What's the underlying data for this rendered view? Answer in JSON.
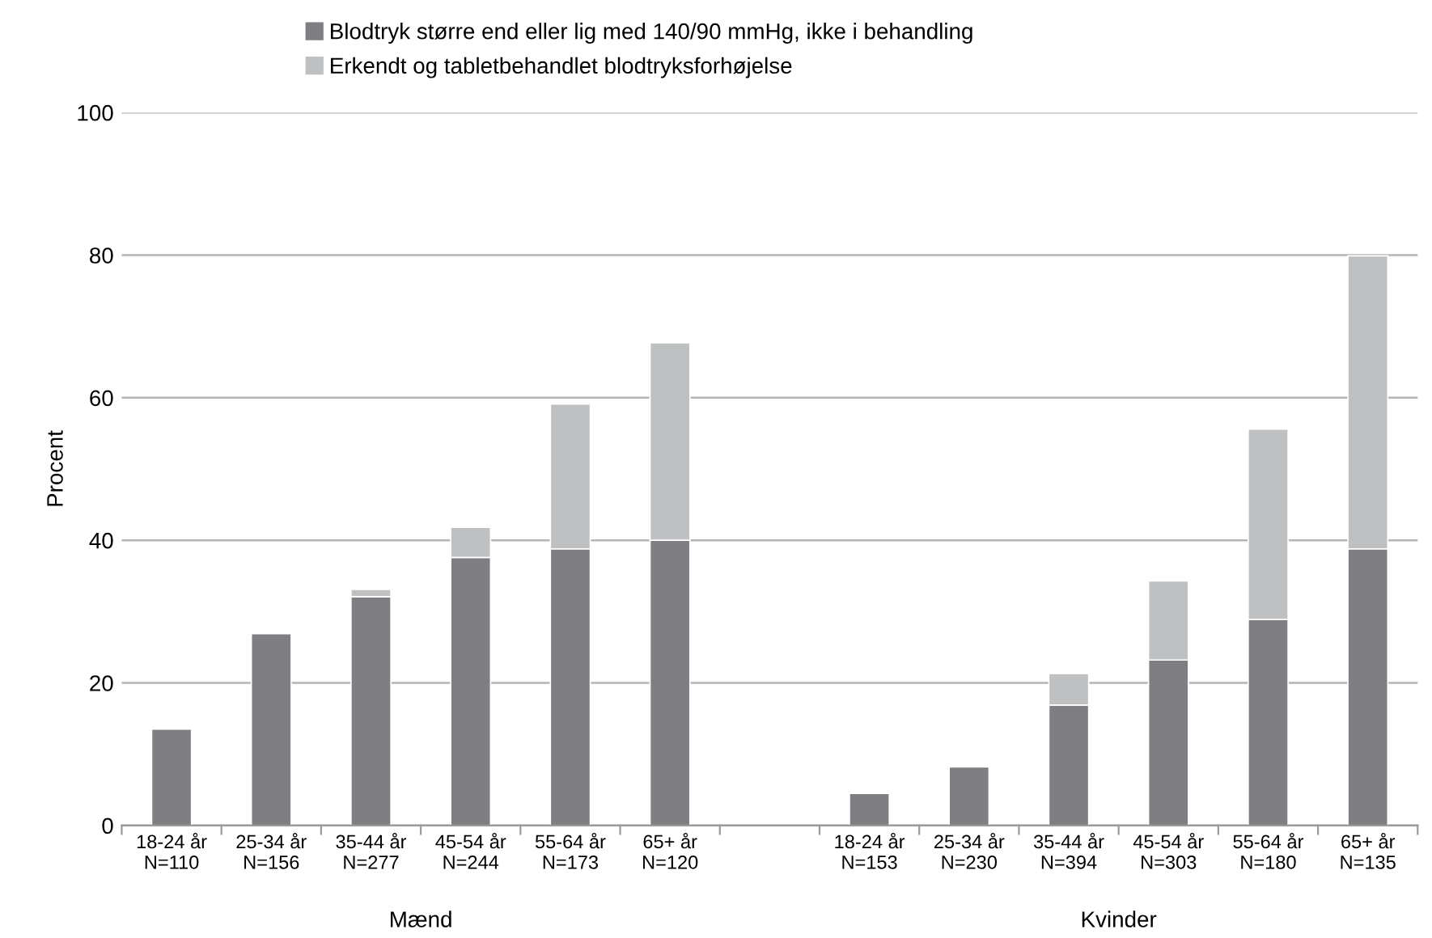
{
  "chart_data": {
    "type": "bar",
    "stacked": true,
    "ylabel": "Procent",
    "categories": [
      "18-24 år\nN=110",
      "25-34 år\nN=156",
      "35-44 år\nN=277",
      "45-54 år\nN=244",
      "55-64 år\nN=173",
      "65+ år\nN=120",
      null,
      "18-24 år\nN=153",
      "25-34 år\nN=230",
      "35-44 år\nN=394",
      "45-54 år\nN=303",
      "55-64 år\nN=180",
      "65+ år\nN=135"
    ],
    "series": [
      {
        "name": "Blodtryk større end eller lig med 140/90 mmHg, ikke i behandling",
        "color": "#7f7f83",
        "values": [
          13.5,
          26.9,
          32.1,
          37.6,
          38.8,
          40.0,
          null,
          4.5,
          8.2,
          16.9,
          23.2,
          28.9,
          38.8
        ]
      },
      {
        "name": "Erkendt og tabletbehandlet blodtryksforhøjelse",
        "color": "#bfc0c2",
        "values": [
          null,
          null,
          1.0,
          4.2,
          20.3,
          27.7,
          null,
          null,
          null,
          4.4,
          11.1,
          26.7,
          41.1
        ]
      }
    ],
    "annotations": [
      "Mænd",
      "Kvinder"
    ],
    "ylim": [
      0,
      100
    ],
    "yticks": [
      0,
      20,
      40,
      60,
      80,
      100
    ],
    "grid": "y",
    "legend": "top"
  }
}
